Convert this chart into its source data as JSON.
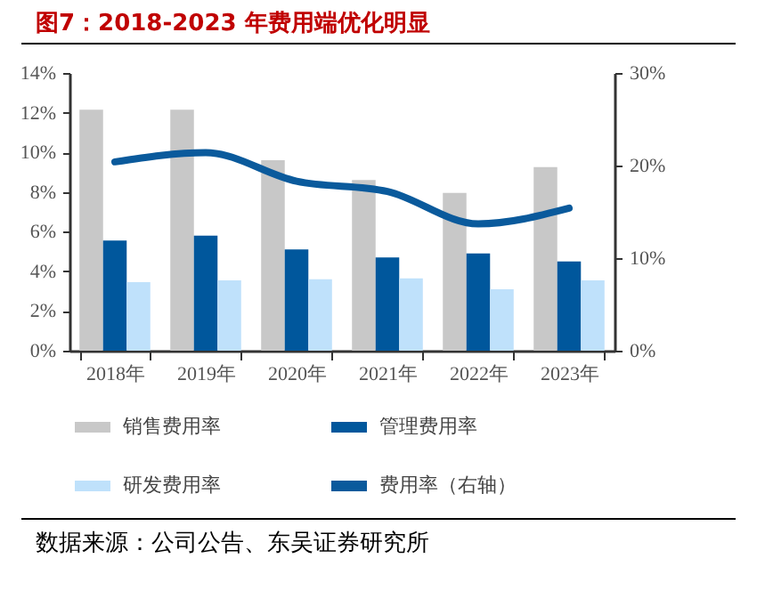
{
  "chart_data": {
    "type": "bar",
    "title": "图7：2018-2023 年费用端优化明显",
    "categories": [
      "2018年",
      "2019年",
      "2020年",
      "2021年",
      "2022年",
      "2023年"
    ],
    "series": [
      {
        "name": "销售费用率",
        "color": "#c8c8c8",
        "values": [
          12.15,
          12.15,
          9.6,
          8.6,
          7.95,
          9.25
        ]
      },
      {
        "name": "管理费用率",
        "color": "#00579c",
        "values": [
          5.55,
          5.8,
          5.1,
          4.7,
          4.9,
          4.5
        ]
      },
      {
        "name": "研发费用率",
        "color": "#bfe1fb",
        "values": [
          3.45,
          3.55,
          3.6,
          3.65,
          3.1,
          3.55
        ]
      },
      {
        "name": "费用率（右轴）",
        "type": "line",
        "axis": "y2",
        "color": "#0a5a9c",
        "values": [
          20.4,
          21.4,
          18.3,
          17.2,
          13.7,
          15.4
        ]
      }
    ],
    "ylim": [
      0,
      14
    ],
    "yticks": [
      {
        "value": 0,
        "label": "0%"
      },
      {
        "value": 2,
        "label": "2%"
      },
      {
        "value": 4,
        "label": "4%"
      },
      {
        "value": 6,
        "label": "6%"
      },
      {
        "value": 8,
        "label": "8%"
      },
      {
        "value": 10,
        "label": "10%"
      },
      {
        "value": 12,
        "label": "12%"
      },
      {
        "value": 14,
        "label": "14%"
      }
    ],
    "y2lim": [
      0,
      30
    ],
    "y2ticks": [
      {
        "value": 0,
        "label": "0%"
      },
      {
        "value": 10,
        "label": "10%"
      },
      {
        "value": 20,
        "label": "20%"
      },
      {
        "value": 30,
        "label": "30%"
      }
    ],
    "legend": "bottom",
    "grid": false,
    "annotations": [
      "数据来源：公司公告、东吴证券研究所"
    ]
  }
}
